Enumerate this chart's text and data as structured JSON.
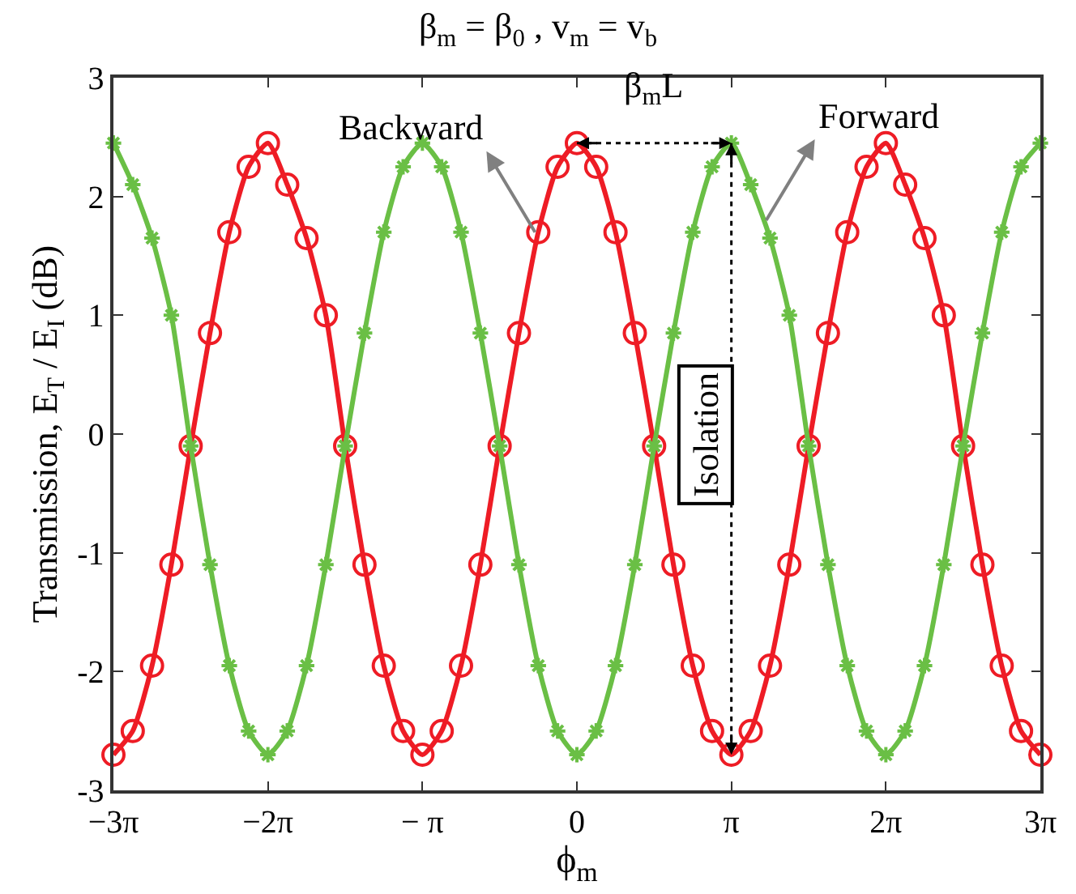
{
  "chart_data": {
    "type": "line",
    "title": "β$_{m}$ = β$_{0}$ , v$_{m}$ = v$_{b}$",
    "xlabel": "ϕ$_{m}$",
    "ylabel": "Transmission, E$_{T}$ / E$_{I}$ (dB)",
    "x": [
      -9.4248,
      -9.0321,
      -8.6394,
      -8.2467,
      -7.854,
      -7.4613,
      -7.0686,
      -6.6759,
      -6.2832,
      -5.8905,
      -5.4978,
      -5.1051,
      -4.7124,
      -4.3197,
      -3.927,
      -3.5343,
      -3.1416,
      -2.7489,
      -2.3562,
      -1.9635,
      -1.5708,
      -1.1781,
      -0.7854,
      -0.3927,
      0,
      0.3927,
      0.7854,
      1.1781,
      1.5708,
      1.9635,
      2.3562,
      2.7489,
      3.1416,
      3.5343,
      3.927,
      4.3197,
      4.7124,
      5.1051,
      5.4978,
      5.8905,
      6.2832,
      6.6759,
      7.0686,
      7.4613,
      7.854,
      8.2467,
      8.6394,
      9.0321,
      9.4248
    ],
    "series": [
      {
        "color": "#ee1c25",
        "marker": "circle",
        "values": [
          -2.7,
          -2.5,
          -1.95,
          -1.1,
          -0.1,
          0.85,
          1.7,
          2.25,
          2.45,
          2.1,
          1.65,
          1.0,
          -0.1,
          -1.1,
          -1.95,
          -2.5,
          -2.7,
          -2.5,
          -1.95,
          -1.1,
          -0.1,
          0.85,
          1.7,
          2.25,
          2.45,
          2.25,
          1.7,
          0.85,
          -0.1,
          -1.1,
          -1.95,
          -2.5,
          -2.7,
          -2.5,
          -1.95,
          -1.1,
          -0.1,
          0.85,
          1.7,
          2.25,
          2.45,
          2.1,
          1.65,
          1.0,
          -0.1,
          -1.1,
          -1.95,
          -2.5,
          -2.7
        ]
      },
      {
        "color": "#6abf45",
        "marker": "cross",
        "values": [
          2.45,
          2.1,
          1.65,
          1.0,
          -0.1,
          -1.1,
          -1.95,
          -2.5,
          -2.7,
          -2.5,
          -1.95,
          -1.1,
          -0.1,
          0.85,
          1.7,
          2.25,
          2.45,
          2.25,
          1.7,
          0.85,
          -0.1,
          -1.1,
          -1.95,
          -2.5,
          -2.7,
          -2.5,
          -1.95,
          -1.1,
          -0.1,
          0.85,
          1.7,
          2.25,
          2.45,
          2.1,
          1.65,
          1.0,
          -0.1,
          -1.1,
          -1.95,
          -2.5,
          -2.7,
          -2.5,
          -1.95,
          -1.1,
          -0.1,
          0.85,
          1.7,
          2.25,
          2.45
        ]
      }
    ],
    "line_style": "solid",
    "xlim": [
      -9.4248,
      9.4248
    ],
    "xticks": [
      {
        "value": -9.4248,
        "label": "−3π"
      },
      {
        "value": -6.2832,
        "label": "−2π"
      },
      {
        "value": -3.1416,
        "label": "− π"
      },
      {
        "value": 0,
        "label": "0"
      },
      {
        "value": 3.1416,
        "label": "π"
      },
      {
        "value": 6.2832,
        "label": "2π"
      },
      {
        "value": 9.4248,
        "label": "3π"
      }
    ],
    "ylim": [
      -3,
      3
    ],
    "yticks": [
      -3,
      -2,
      -1,
      0,
      1,
      2,
      3
    ],
    "ref_lines": [
      {
        "axis": "x",
        "value": 3.1416,
        "color": "#000000",
        "line_style": "dotted"
      }
    ],
    "annotations": [
      {
        "text": "Backward",
        "x": -0.85,
        "y": 1.7
      },
      {
        "text": "Forward",
        "x": 3.85,
        "y": 1.8
      },
      "β$_{m}$L",
      "Isolation"
    ]
  }
}
